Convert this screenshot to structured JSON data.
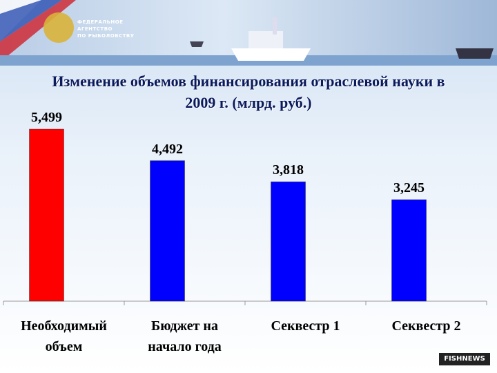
{
  "header": {
    "org": [
      "ФЕДЕРАЛЬНОЕ",
      "АГЕНТСТВО",
      "ПО РЫБОЛОВСТВУ"
    ]
  },
  "chart_data": {
    "type": "bar",
    "title": "Изменение объемов финансирования отраслевой науки в 2009 г. (млрд. руб.)",
    "categories": [
      "Необходимый объем",
      "Бюджет на начало года",
      "Секвестр 1",
      "Секвестр 2"
    ],
    "values": [
      5.499,
      4.492,
      3.818,
      3.245
    ],
    "value_labels": [
      "5,499",
      "4,492",
      "3,818",
      "3,245"
    ],
    "colors": [
      "#ff0000",
      "#0000ff",
      "#0000ff",
      "#0000ff"
    ]
  },
  "watermark": "FISHNEWS"
}
